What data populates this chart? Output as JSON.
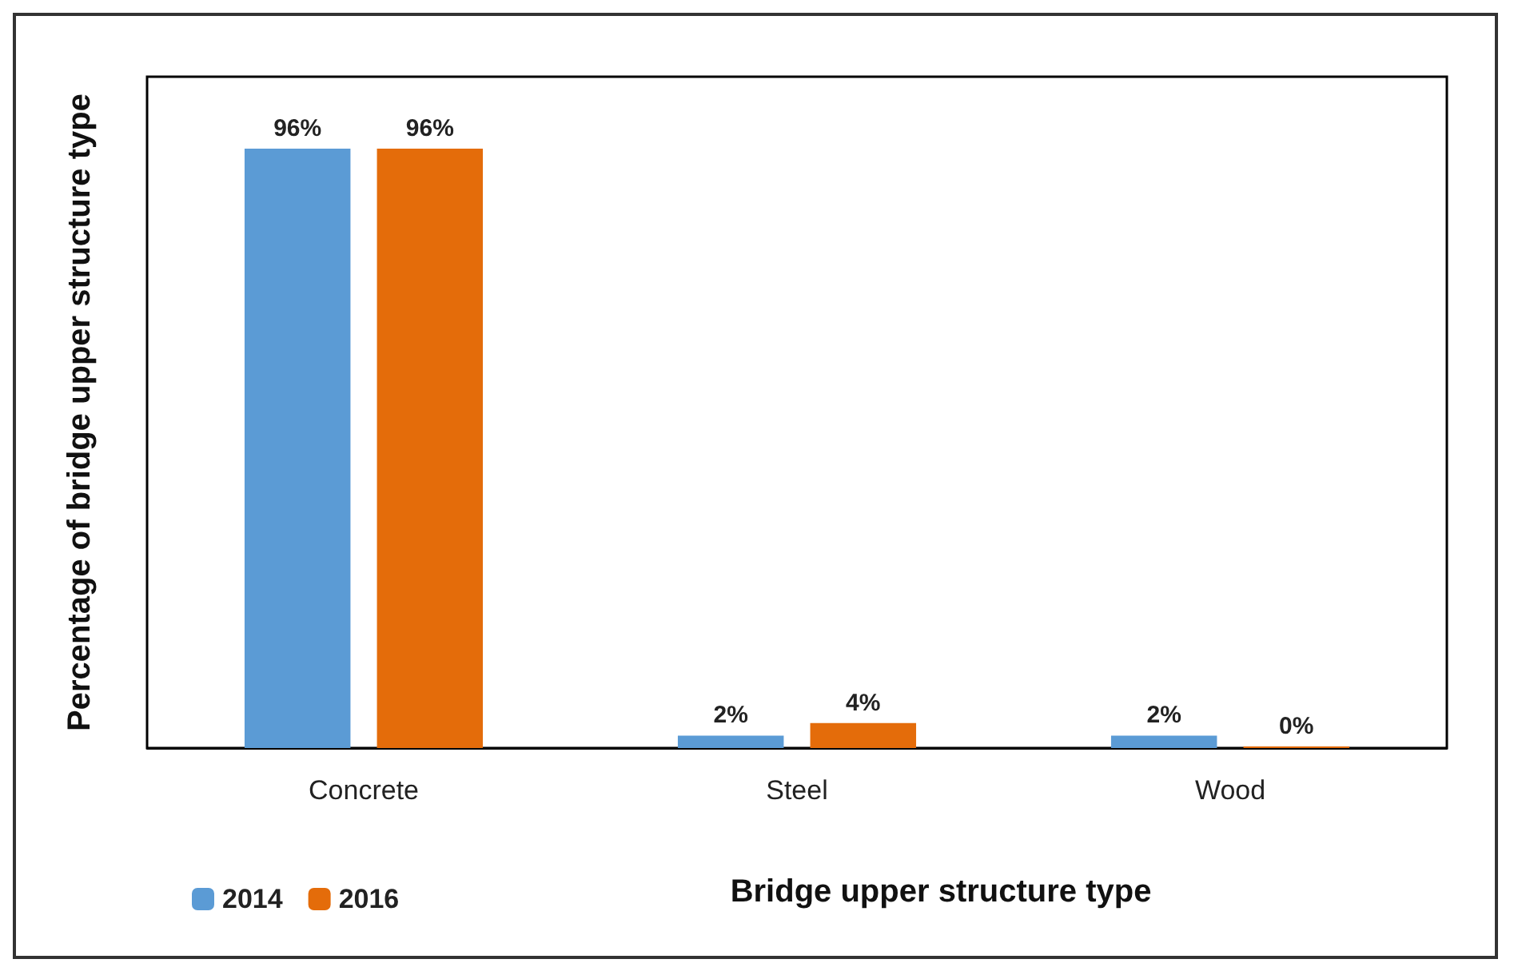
{
  "chart_data": {
    "type": "bar",
    "xlabel": "Bridge upper structure type",
    "ylabel": "Percentage of bridge upper structure type",
    "categories": [
      "Concrete",
      "Steel",
      "Wood"
    ],
    "series": [
      {
        "name": "2014",
        "color": "#5b9bd5",
        "values": [
          96,
          2,
          2
        ],
        "value_labels": [
          "96%",
          "2%",
          "2%"
        ]
      },
      {
        "name": "2016",
        "color": "#e46c0a",
        "values": [
          96,
          4,
          0
        ],
        "value_labels": [
          "96%",
          "4%",
          "0%"
        ]
      }
    ],
    "tick_labels": "x",
    "legend": "bottom left",
    "grid": false
  }
}
